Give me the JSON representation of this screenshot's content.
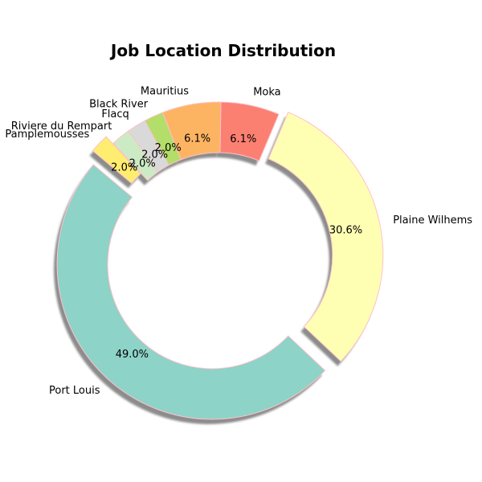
{
  "chart_data": {
    "type": "pie",
    "variant": "donut",
    "title": "Job Location Distribution",
    "start_angle_deg": 140,
    "direction": "counterclockwise",
    "exploded": [
      "Port Louis",
      "Plaine Wilhems",
      "Pamplemousses"
    ],
    "shadow": true,
    "edge_color": "#ffc0cb",
    "slices": [
      {
        "label": "Port Louis",
        "value": 49.0,
        "pct_text": "49.0%",
        "color": "#8dd3c7"
      },
      {
        "label": "Plaine Wilhems",
        "value": 30.6,
        "pct_text": "30.6%",
        "color": "#ffffb3"
      },
      {
        "label": "Moka",
        "value": 6.1,
        "pct_text": "6.1%",
        "color": "#fb8072"
      },
      {
        "label": "Mauritius",
        "value": 6.1,
        "pct_text": "6.1%",
        "color": "#fdb462"
      },
      {
        "label": "Black River",
        "value": 2.0,
        "pct_text": "2.0%",
        "color": "#b3de69"
      },
      {
        "label": "Flacq",
        "value": 2.0,
        "pct_text": "2.0%",
        "color": "#d9d9d9"
      },
      {
        "label": "Riviere du Rempart",
        "value": 2.0,
        "pct_text": "2.0%",
        "color": "#ccebc5"
      },
      {
        "label": "Pamplemousses",
        "value": 2.0,
        "pct_text": "2.0%",
        "color": "#ffed6f"
      }
    ]
  }
}
